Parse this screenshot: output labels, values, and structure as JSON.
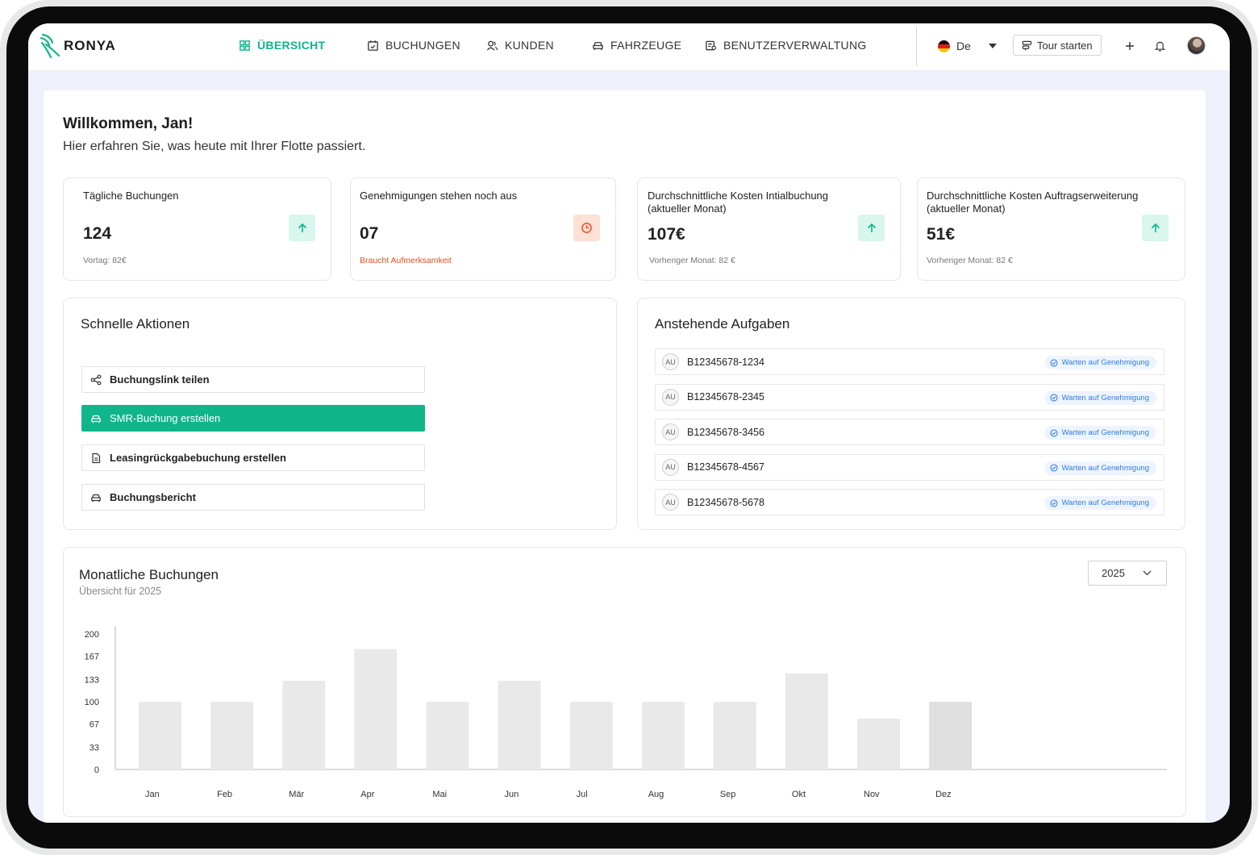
{
  "app": {
    "logo": "RONYA"
  },
  "nav": {
    "items": [
      {
        "label": "ÜBERSICHT",
        "icon": "dashboard-icon",
        "active": true
      },
      {
        "label": "BUCHUNGEN",
        "icon": "calendar-icon",
        "active": false
      },
      {
        "label": "KUNDEN",
        "icon": "users-icon",
        "active": false
      },
      {
        "label": "FAHRZEUGE",
        "icon": "car-icon",
        "active": false
      },
      {
        "label": "BENUTZERVERWALTUNG",
        "icon": "user-management-icon",
        "active": false
      }
    ],
    "language": "De",
    "tour_label": "Tour starten"
  },
  "welcome": {
    "title": "Willkommen, Jan!",
    "subtitle": "Hier erfahren Sie, was heute mit Ihrer Flotte passiert."
  },
  "kpis": [
    {
      "title": "Tägliche Buchungen",
      "value": "124",
      "note": "Vortag: 82€",
      "badge": "arrow-up-icon",
      "tone": "green"
    },
    {
      "title": "Genehmigungen stehen noch aus",
      "value": "07",
      "note": "Braucht Aufmerksamkeit",
      "badge": "clock-icon",
      "tone": "orange"
    },
    {
      "title": "Durchschnittliche Kosten Intialbuchung (aktueller Monat)",
      "value": "107€",
      "note": "Vorheriger Monat: 82 €",
      "badge": "arrow-up-icon",
      "tone": "green"
    },
    {
      "title": "Durchschnittliche Kosten Auftragserweiterung (aktueller Monat)",
      "value": "51€",
      "note": "Vorheriger Monat: 82 €",
      "badge": "arrow-up-icon",
      "tone": "green"
    }
  ],
  "quick_actions": {
    "title": "Schnelle Aktionen",
    "items": [
      {
        "label": "Buchungslink teilen",
        "icon": "share-icon"
      },
      {
        "label": "SMR-Buchung erstellen",
        "icon": "car-icon"
      },
      {
        "label": "Leasingrückgabebuchung erstellen",
        "icon": "document-icon"
      },
      {
        "label": "Buchungsbericht",
        "icon": "car-icon"
      }
    ]
  },
  "tasks": {
    "title": "Anstehende Aufgaben",
    "items": [
      {
        "initials": "AU",
        "id": "B12345678-1234",
        "status": "Warten auf Genehmigung"
      },
      {
        "initials": "AU",
        "id": "B12345678-2345",
        "status": "Warten auf Genehmigung"
      },
      {
        "initials": "AU",
        "id": "B12345678-3456",
        "status": "Warten auf Genehmigung"
      },
      {
        "initials": "AU",
        "id": "B12345678-4567",
        "status": "Warten auf Genehmigung"
      },
      {
        "initials": "AU",
        "id": "B12345678-5678",
        "status": "Warten auf Genehmigung"
      }
    ]
  },
  "chart_section": {
    "title": "Monatliche Buchungen",
    "subtitle": "Übersicht für 2025",
    "year": "2025"
  },
  "colors": {
    "accent": "#10b58a",
    "warning": "#e8501b",
    "info": "#2f7de1",
    "bar": "#e9e9e9",
    "bar_current": "#e0e0e0"
  },
  "chart_data": {
    "type": "bar",
    "categories": [
      "Jan",
      "Feb",
      "Mär",
      "Apr",
      "Mai",
      "Jun",
      "Jul",
      "Aug",
      "Sep",
      "Okt",
      "Nov",
      "Dez"
    ],
    "values": [
      100,
      100,
      131,
      178,
      100,
      131,
      100,
      100,
      100,
      142,
      75,
      100
    ],
    "yticks": [
      "0",
      "33",
      "67",
      "100",
      "133",
      "167",
      "200"
    ],
    "ylim": [
      0,
      200
    ],
    "grid": false,
    "legend": "none"
  }
}
